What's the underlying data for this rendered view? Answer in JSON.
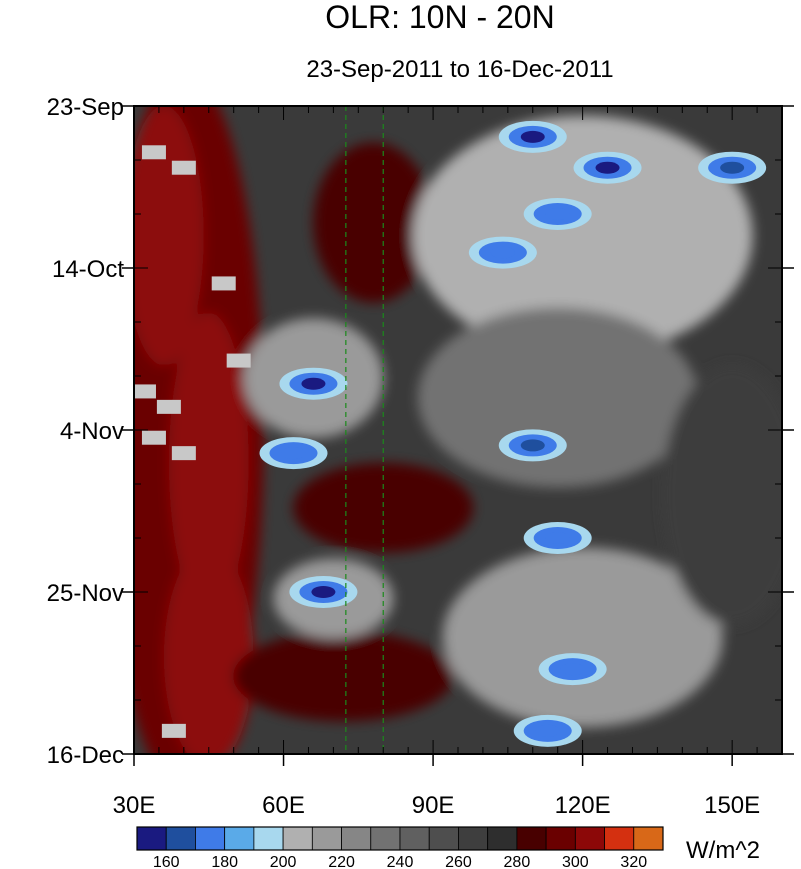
{
  "chart_data": {
    "type": "heatmap",
    "title": "OLR: 10N - 20N",
    "subtitle": "23-Sep-2011 to 16-Dec-2011",
    "xlabel": "",
    "ylabel": "",
    "x_range": [
      30,
      160
    ],
    "x_unit": "degrees East longitude",
    "x_tick_values": [
      30,
      60,
      90,
      120,
      150
    ],
    "x_tick_labels": [
      "30E",
      "60E",
      "90E",
      "120E",
      "150E"
    ],
    "y_tick_labels": [
      "23-Sep",
      "14-Oct",
      "4-Nov",
      "25-Nov",
      "16-Dec"
    ],
    "y_range": [
      "2011-09-23",
      "2011-12-16"
    ],
    "y_direction": "time increasing downward",
    "reference_lines_x": [
      72.5,
      80
    ],
    "reference_line_style": "dashed green",
    "colorbar": {
      "unit_label": "W/m^2",
      "levels": [
        160,
        170,
        180,
        190,
        200,
        210,
        220,
        230,
        240,
        250,
        260,
        270,
        280,
        290,
        300,
        310,
        320,
        330
      ],
      "tick_labels": [
        "160",
        "180",
        "200",
        "220",
        "240",
        "260",
        "280",
        "300",
        "320"
      ],
      "colors": [
        "#1a1a80",
        "#1f4f9e",
        "#3f7be8",
        "#5aaae8",
        "#a8d8ee",
        "#b0b0b0",
        "#9a9a9a",
        "#868686",
        "#727272",
        "#606060",
        "#4e4e4e",
        "#3e3e3e",
        "#2e2e2e",
        "#480000",
        "#6a0000",
        "#8c0808",
        "#d43010",
        "#d86818"
      ]
    },
    "features": [
      {
        "lon": 110,
        "date": "2011-09-27",
        "value": 160
      },
      {
        "lon": 125,
        "date": "2011-10-01",
        "value": 165
      },
      {
        "lon": 150,
        "date": "2011-10-01",
        "value": 175
      },
      {
        "lon": 115,
        "date": "2011-10-07",
        "value": 180
      },
      {
        "lon": 104,
        "date": "2011-10-12",
        "value": 180
      },
      {
        "lon": 66,
        "date": "2011-10-29",
        "value": 165
      },
      {
        "lon": 62,
        "date": "2011-11-07",
        "value": 180
      },
      {
        "lon": 110,
        "date": "2011-11-06",
        "value": 175
      },
      {
        "lon": 115,
        "date": "2011-11-18",
        "value": 185
      },
      {
        "lon": 68,
        "date": "2011-11-25",
        "value": 165
      },
      {
        "lon": 118,
        "date": "2011-12-05",
        "value": 180
      },
      {
        "lon": 113,
        "date": "2011-12-13",
        "value": 185
      }
    ],
    "missing_data": [
      {
        "lon": 34,
        "date": "2011-09-29"
      },
      {
        "lon": 40,
        "date": "2011-10-01"
      },
      {
        "lon": 48,
        "date": "2011-10-16"
      },
      {
        "lon": 51,
        "date": "2011-10-26"
      },
      {
        "lon": 32,
        "date": "2011-10-30"
      },
      {
        "lon": 37,
        "date": "2011-11-01"
      },
      {
        "lon": 34,
        "date": "2011-11-05"
      },
      {
        "lon": 40,
        "date": "2011-11-07"
      },
      {
        "lon": 38,
        "date": "2011-12-13"
      }
    ]
  }
}
